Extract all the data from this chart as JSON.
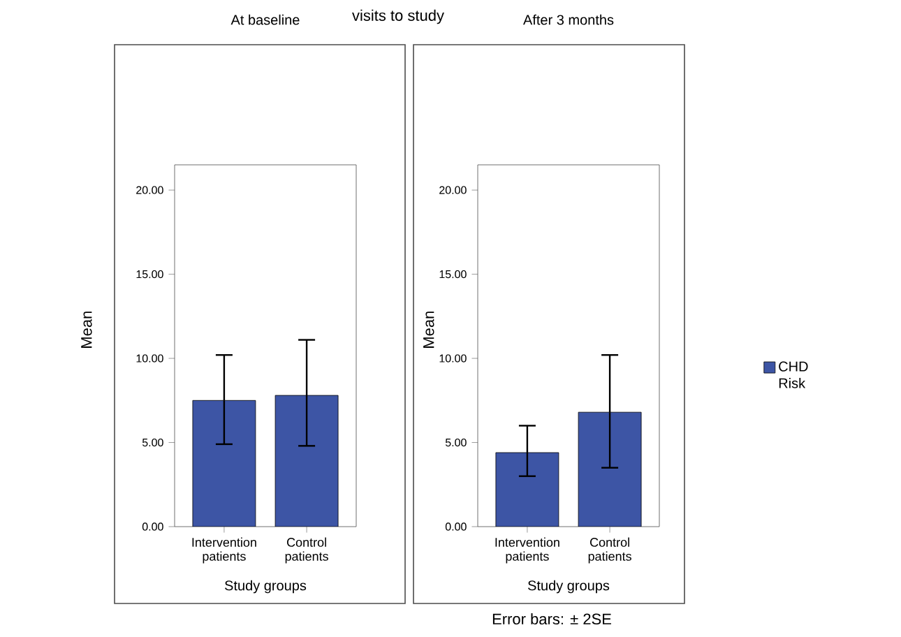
{
  "chart_data": [
    {
      "type": "bar",
      "title": "At baseline",
      "xlabel": "Study groups",
      "ylabel": "Mean",
      "categories": [
        "Intervention patients",
        "Control patients"
      ],
      "series": [
        {
          "color": "#3d55a5",
          "values": [
            7.5,
            7.8
          ],
          "errors": [
            [
              4.9,
              10.2
            ],
            [
              4.8,
              11.1
            ]
          ]
        }
      ],
      "ylim": [
        0,
        21.5
      ],
      "yticks": [
        {
          "value": 0,
          "label": "0.00"
        },
        {
          "value": 5,
          "label": "5.00"
        },
        {
          "value": 10,
          "label": "10.00"
        },
        {
          "value": 15,
          "label": "15.00"
        },
        {
          "value": 20,
          "label": "20.00"
        }
      ],
      "annotations": [
        "visits to study"
      ]
    },
    {
      "type": "bar",
      "title": "After 3 months",
      "xlabel": "Study groups",
      "ylabel": "Mean",
      "categories": [
        "Intervention patients",
        "Control patients"
      ],
      "series": [
        {
          "name": "CHD Risk",
          "color": "#3d55a5",
          "values": [
            4.4,
            6.8
          ],
          "errors": [
            [
              3.0,
              6.0
            ],
            [
              3.5,
              10.2
            ]
          ]
        }
      ],
      "ylim": [
        0,
        21.5
      ],
      "yticks": [
        {
          "value": 0,
          "label": "0.00"
        },
        {
          "value": 5,
          "label": "5.00"
        },
        {
          "value": 10,
          "label": "10.00"
        },
        {
          "value": 15,
          "label": "15.00"
        },
        {
          "value": 20,
          "label": "20.00"
        }
      ],
      "legend": "right",
      "annotations": [
        "Error bars: ± 2SE"
      ]
    }
  ]
}
